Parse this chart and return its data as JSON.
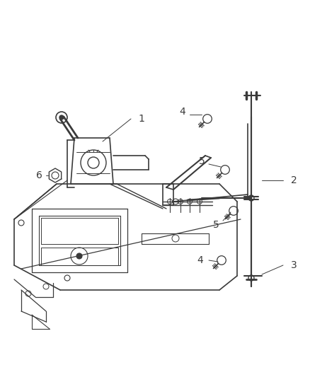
{
  "background_color": "#ffffff",
  "line_color": "#3a3a3a",
  "label_color": "#3a3a3a",
  "figsize": [
    4.38,
    5.33
  ],
  "dpi": 100
}
